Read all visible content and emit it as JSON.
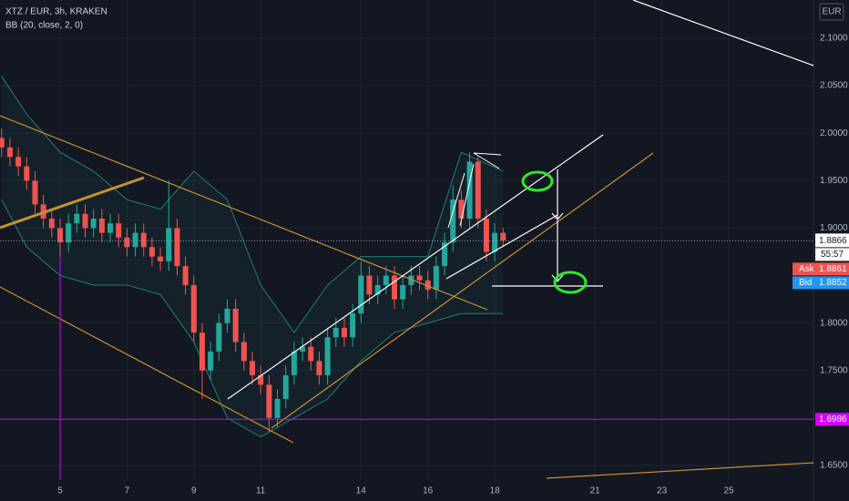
{
  "chart_data": {
    "type": "candlestick",
    "title": "XTZ / EUR, 3h, KRAKEN",
    "subtitle": "BB (20, close, 2, 0)",
    "currency": "EUR",
    "up_color": "#26a69a",
    "down_color": "#ef5350",
    "grid": true,
    "x": [
      3.25,
      3.5,
      3.75,
      4,
      4.25,
      4.5,
      4.75,
      5,
      5.25,
      5.5,
      5.75,
      6,
      6.25,
      6.5,
      6.75,
      7,
      7.25,
      7.5,
      7.75,
      8,
      8.25,
      8.5,
      8.75,
      9,
      9.25,
      9.5,
      9.75,
      10,
      10.25,
      10.5,
      10.75,
      11,
      11.25,
      11.5,
      11.75,
      12,
      12.25,
      12.5,
      12.75,
      13,
      13.25,
      13.5,
      13.75,
      14,
      14.25,
      14.5,
      14.75,
      15,
      15.25,
      15.5,
      15.75,
      16,
      16.25,
      16.5,
      16.75,
      17,
      17.25,
      17.5,
      17.75,
      18,
      18.25
    ],
    "open": [
      1.995,
      1.985,
      1.975,
      1.965,
      1.95,
      1.925,
      1.91,
      1.9,
      1.885,
      1.905,
      1.915,
      1.9,
      1.91,
      1.895,
      1.905,
      1.89,
      1.88,
      1.895,
      1.88,
      1.87,
      1.865,
      1.9,
      1.86,
      1.84,
      1.79,
      1.75,
      1.77,
      1.8,
      1.815,
      1.78,
      1.76,
      1.745,
      1.735,
      1.7,
      1.72,
      1.745,
      1.77,
      1.775,
      1.76,
      1.745,
      1.785,
      1.795,
      1.785,
      1.81,
      1.85,
      1.83,
      1.84,
      1.85,
      1.825,
      1.84,
      1.85,
      1.845,
      1.835,
      1.86,
      1.885,
      1.93,
      1.91,
      1.97,
      1.91,
      1.875,
      1.895
    ],
    "high": [
      2.005,
      1.995,
      1.985,
      1.975,
      1.96,
      1.935,
      1.92,
      1.91,
      1.915,
      1.925,
      1.925,
      1.92,
      1.92,
      1.915,
      1.915,
      1.9,
      1.905,
      1.905,
      1.89,
      1.88,
      1.95,
      1.91,
      1.87,
      1.85,
      1.8,
      1.78,
      1.81,
      1.825,
      1.825,
      1.79,
      1.77,
      1.755,
      1.745,
      1.73,
      1.755,
      1.78,
      1.785,
      1.785,
      1.77,
      1.795,
      1.805,
      1.805,
      1.82,
      1.865,
      1.86,
      1.85,
      1.86,
      1.86,
      1.85,
      1.86,
      1.86,
      1.855,
      1.87,
      1.895,
      1.945,
      1.94,
      1.98,
      1.975,
      1.92,
      1.905,
      1.9
    ],
    "low": [
      1.975,
      1.965,
      1.955,
      1.94,
      1.915,
      1.9,
      1.89,
      1.86,
      1.875,
      1.895,
      1.89,
      1.89,
      1.885,
      1.885,
      1.88,
      1.87,
      1.87,
      1.87,
      1.86,
      1.855,
      1.855,
      1.85,
      1.83,
      1.78,
      1.72,
      1.74,
      1.76,
      1.79,
      1.77,
      1.75,
      1.735,
      1.725,
      1.685,
      1.69,
      1.71,
      1.735,
      1.76,
      1.75,
      1.735,
      1.735,
      1.775,
      1.775,
      1.775,
      1.8,
      1.82,
      1.82,
      1.83,
      1.815,
      1.815,
      1.83,
      1.835,
      1.825,
      1.825,
      1.85,
      1.875,
      1.9,
      1.9,
      1.9,
      1.865,
      1.865,
      1.88
    ],
    "close": [
      1.985,
      1.975,
      1.965,
      1.95,
      1.925,
      1.91,
      1.9,
      1.885,
      1.905,
      1.915,
      1.9,
      1.91,
      1.895,
      1.905,
      1.89,
      1.88,
      1.895,
      1.88,
      1.87,
      1.865,
      1.9,
      1.86,
      1.84,
      1.79,
      1.75,
      1.77,
      1.8,
      1.815,
      1.78,
      1.76,
      1.745,
      1.735,
      1.7,
      1.72,
      1.745,
      1.77,
      1.775,
      1.76,
      1.745,
      1.785,
      1.795,
      1.785,
      1.81,
      1.85,
      1.83,
      1.84,
      1.85,
      1.825,
      1.84,
      1.85,
      1.845,
      1.835,
      1.86,
      1.885,
      1.93,
      1.91,
      1.97,
      1.91,
      1.875,
      1.895,
      1.887
    ],
    "bands": {
      "x": [
        3.25,
        4,
        5,
        6,
        7,
        8,
        9,
        10,
        11,
        12,
        13,
        14,
        15,
        16,
        17,
        18.25
      ],
      "upper": [
        2.06,
        2.02,
        1.98,
        1.96,
        1.93,
        1.92,
        1.96,
        1.93,
        1.84,
        1.79,
        1.84,
        1.87,
        1.87,
        1.87,
        1.98,
        1.96
      ],
      "lower": [
        1.93,
        1.88,
        1.85,
        1.84,
        1.84,
        1.83,
        1.78,
        1.7,
        1.68,
        1.7,
        1.72,
        1.76,
        1.79,
        1.8,
        1.81,
        1.81
      ]
    },
    "xlim": [
      3.202,
      27.534
    ],
    "xticks": [
      5,
      7,
      9,
      11,
      14,
      16,
      18,
      21,
      23,
      25
    ],
    "ylim": [
      1.6346,
      2.1403
    ],
    "yticks": [
      {
        "value": 2.1,
        "label": "2.1000"
      },
      {
        "value": 2.05,
        "label": "2.0500"
      },
      {
        "value": 2.0,
        "label": "2.0000"
      },
      {
        "value": 1.95,
        "label": "1.9500"
      },
      {
        "value": 1.9,
        "label": "1.9000"
      },
      {
        "value": 1.8,
        "label": "1.8000"
      },
      {
        "value": 1.75,
        "label": "1.7500"
      },
      {
        "value": 1.65,
        "label": "1.6500"
      }
    ],
    "last_price": 1.8866,
    "countdown": "55:57",
    "ask": {
      "label": "Ask",
      "value": 1.8861
    },
    "bid": {
      "label": "Bid",
      "value": 1.8852
    },
    "level": 1.6986
  }
}
